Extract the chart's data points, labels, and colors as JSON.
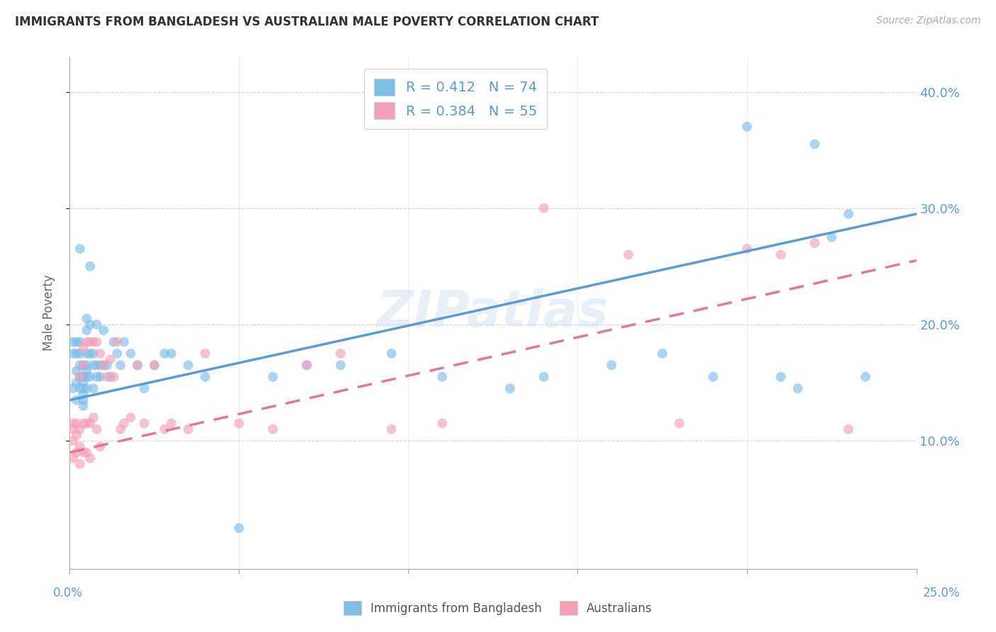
{
  "title": "IMMIGRANTS FROM BANGLADESH VS AUSTRALIAN MALE POVERTY CORRELATION CHART",
  "source": "Source: ZipAtlas.com",
  "ylabel": "Male Poverty",
  "ytick_labels": [
    "10.0%",
    "20.0%",
    "30.0%",
    "40.0%"
  ],
  "ytick_values": [
    0.1,
    0.2,
    0.3,
    0.4
  ],
  "xlim": [
    0.0,
    0.25
  ],
  "ylim": [
    -0.01,
    0.43
  ],
  "legend1_text": "R = 0.412   N = 74",
  "legend2_text": "R = 0.384   N = 55",
  "color_blue": "#7dbee8",
  "color_pink": "#f4a0b8",
  "color_blue_line": "#5b9bd5",
  "color_pink_line": "#e07898",
  "watermark": "ZIPatlas",
  "blue_line_x0": 0.0,
  "blue_line_y0": 0.135,
  "blue_line_x1": 0.25,
  "blue_line_y1": 0.295,
  "pink_line_x0": 0.0,
  "pink_line_y0": 0.09,
  "pink_line_x1": 0.25,
  "pink_line_y1": 0.255,
  "series1_x": [
    0.001,
    0.001,
    0.001,
    0.002,
    0.002,
    0.002,
    0.002,
    0.002,
    0.003,
    0.003,
    0.003,
    0.003,
    0.003,
    0.003,
    0.004,
    0.004,
    0.004,
    0.004,
    0.004,
    0.004,
    0.004,
    0.005,
    0.005,
    0.005,
    0.005,
    0.005,
    0.005,
    0.005,
    0.006,
    0.006,
    0.006,
    0.006,
    0.007,
    0.007,
    0.007,
    0.008,
    0.008,
    0.008,
    0.009,
    0.009,
    0.01,
    0.01,
    0.011,
    0.012,
    0.013,
    0.014,
    0.015,
    0.016,
    0.018,
    0.02,
    0.022,
    0.025,
    0.028,
    0.03,
    0.035,
    0.04,
    0.05,
    0.06,
    0.07,
    0.08,
    0.095,
    0.11,
    0.13,
    0.14,
    0.16,
    0.175,
    0.19,
    0.2,
    0.21,
    0.215,
    0.22,
    0.225,
    0.23,
    0.235
  ],
  "series1_y": [
    0.185,
    0.175,
    0.145,
    0.185,
    0.175,
    0.16,
    0.15,
    0.135,
    0.265,
    0.185,
    0.175,
    0.165,
    0.155,
    0.145,
    0.165,
    0.155,
    0.15,
    0.145,
    0.14,
    0.135,
    0.13,
    0.205,
    0.195,
    0.175,
    0.165,
    0.16,
    0.155,
    0.145,
    0.25,
    0.2,
    0.175,
    0.155,
    0.175,
    0.165,
    0.145,
    0.2,
    0.165,
    0.155,
    0.165,
    0.155,
    0.195,
    0.165,
    0.165,
    0.155,
    0.185,
    0.175,
    0.165,
    0.185,
    0.175,
    0.165,
    0.145,
    0.165,
    0.175,
    0.175,
    0.165,
    0.155,
    0.025,
    0.155,
    0.165,
    0.165,
    0.175,
    0.155,
    0.145,
    0.155,
    0.165,
    0.175,
    0.155,
    0.37,
    0.155,
    0.145,
    0.355,
    0.275,
    0.295,
    0.155
  ],
  "series2_x": [
    0.001,
    0.001,
    0.001,
    0.001,
    0.002,
    0.002,
    0.002,
    0.003,
    0.003,
    0.003,
    0.003,
    0.004,
    0.004,
    0.004,
    0.004,
    0.005,
    0.005,
    0.005,
    0.006,
    0.006,
    0.006,
    0.007,
    0.007,
    0.008,
    0.008,
    0.009,
    0.009,
    0.01,
    0.011,
    0.012,
    0.013,
    0.014,
    0.015,
    0.016,
    0.018,
    0.02,
    0.022,
    0.025,
    0.028,
    0.03,
    0.035,
    0.04,
    0.05,
    0.06,
    0.07,
    0.08,
    0.095,
    0.11,
    0.14,
    0.165,
    0.18,
    0.2,
    0.21,
    0.22,
    0.23
  ],
  "series2_y": [
    0.115,
    0.11,
    0.1,
    0.085,
    0.115,
    0.105,
    0.09,
    0.155,
    0.11,
    0.095,
    0.08,
    0.18,
    0.165,
    0.115,
    0.09,
    0.185,
    0.115,
    0.09,
    0.185,
    0.115,
    0.085,
    0.185,
    0.12,
    0.185,
    0.11,
    0.175,
    0.095,
    0.165,
    0.155,
    0.17,
    0.155,
    0.185,
    0.11,
    0.115,
    0.12,
    0.165,
    0.115,
    0.165,
    0.11,
    0.115,
    0.11,
    0.175,
    0.115,
    0.11,
    0.165,
    0.175,
    0.11,
    0.115,
    0.3,
    0.26,
    0.115,
    0.265,
    0.26,
    0.27,
    0.11
  ]
}
